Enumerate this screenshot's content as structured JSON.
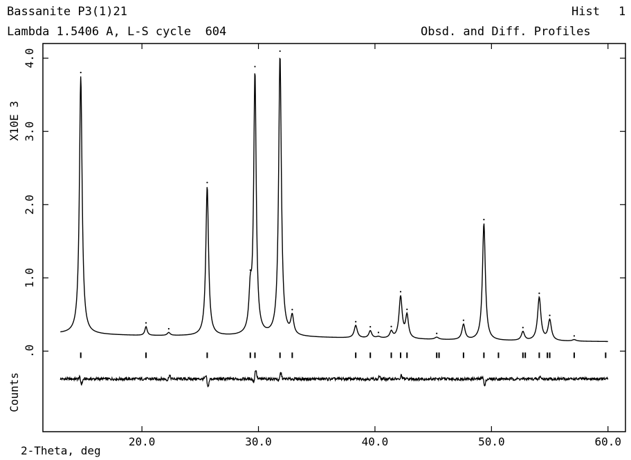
{
  "header": {
    "title": "Bassanite P3(1)21",
    "hist_label": "Hist",
    "hist_number": "1",
    "subtitle": "Lambda 1.5406 A, L-S cycle  604",
    "profile_label": "Obsd. and Diff. Profiles"
  },
  "chart_data": {
    "type": "line",
    "xlabel": "2-Theta, deg",
    "ylabel_top": "X10E  3",
    "ylabel_bottom": "Counts",
    "xlim": [
      11.5,
      61.5
    ],
    "ylim": [
      -1.1,
      4.2
    ],
    "xticks": [
      20.0,
      30.0,
      40.0,
      50.0,
      60.0
    ],
    "xtick_labels": [
      "20.0",
      "30.0",
      "40.0",
      "50.0",
      "60.0"
    ],
    "yticks": [
      0.0,
      1.0,
      2.0,
      3.0,
      4.0
    ],
    "ytick_labels": [
      ".0",
      "1.0",
      "2.0",
      "3.0",
      "4.0"
    ],
    "x_range_data": [
      13.0,
      60.0
    ],
    "background": [
      [
        13.0,
        0.24
      ],
      [
        20.0,
        0.21
      ],
      [
        30.0,
        0.2
      ],
      [
        40.0,
        0.17
      ],
      [
        50.0,
        0.14
      ],
      [
        60.0,
        0.13
      ]
    ],
    "peaks": [
      {
        "x": 14.75,
        "height": 3.52,
        "width": 0.14
      },
      {
        "x": 20.35,
        "height": 0.12,
        "width": 0.12
      },
      {
        "x": 22.3,
        "height": 0.04,
        "width": 0.15
      },
      {
        "x": 25.6,
        "height": 2.04,
        "width": 0.14
      },
      {
        "x": 29.3,
        "height": 0.5,
        "width": 0.14
      },
      {
        "x": 29.7,
        "height": 3.56,
        "width": 0.13
      },
      {
        "x": 31.85,
        "height": 3.83,
        "width": 0.14
      },
      {
        "x": 32.9,
        "height": 0.25,
        "width": 0.15
      },
      {
        "x": 38.35,
        "height": 0.17,
        "width": 0.16
      },
      {
        "x": 39.6,
        "height": 0.1,
        "width": 0.15
      },
      {
        "x": 40.3,
        "height": 0.02,
        "width": 0.2
      },
      {
        "x": 41.4,
        "height": 0.09,
        "width": 0.15
      },
      {
        "x": 42.2,
        "height": 0.57,
        "width": 0.16
      },
      {
        "x": 42.75,
        "height": 0.31,
        "width": 0.15
      },
      {
        "x": 45.3,
        "height": 0.03,
        "width": 0.2
      },
      {
        "x": 47.6,
        "height": 0.21,
        "width": 0.16
      },
      {
        "x": 49.35,
        "height": 1.6,
        "width": 0.15
      },
      {
        "x": 52.7,
        "height": 0.12,
        "width": 0.16
      },
      {
        "x": 54.1,
        "height": 0.59,
        "width": 0.17
      },
      {
        "x": 55.0,
        "height": 0.28,
        "width": 0.17
      },
      {
        "x": 57.1,
        "height": 0.02,
        "width": 0.2
      }
    ],
    "reflection_positions": [
      14.75,
      20.35,
      25.6,
      29.3,
      29.7,
      31.85,
      32.9,
      38.35,
      39.6,
      41.4,
      42.2,
      42.75,
      45.3,
      45.5,
      47.6,
      49.35,
      50.6,
      52.7,
      52.9,
      54.1,
      54.8,
      55.0,
      57.1,
      59.8
    ],
    "diff_offset": -0.38,
    "diff_features": [
      {
        "x": 14.75,
        "amplitude": -0.1
      },
      {
        "x": 22.3,
        "amplitude": 0.07
      },
      {
        "x": 25.6,
        "amplitude": -0.16
      },
      {
        "x": 29.7,
        "amplitude": 0.18
      },
      {
        "x": 31.85,
        "amplitude": 0.12
      },
      {
        "x": 40.3,
        "amplitude": 0.05
      },
      {
        "x": 42.2,
        "amplitude": 0.07
      },
      {
        "x": 49.35,
        "amplitude": -0.14
      },
      {
        "x": 54.1,
        "amplitude": 0.05
      }
    ]
  }
}
